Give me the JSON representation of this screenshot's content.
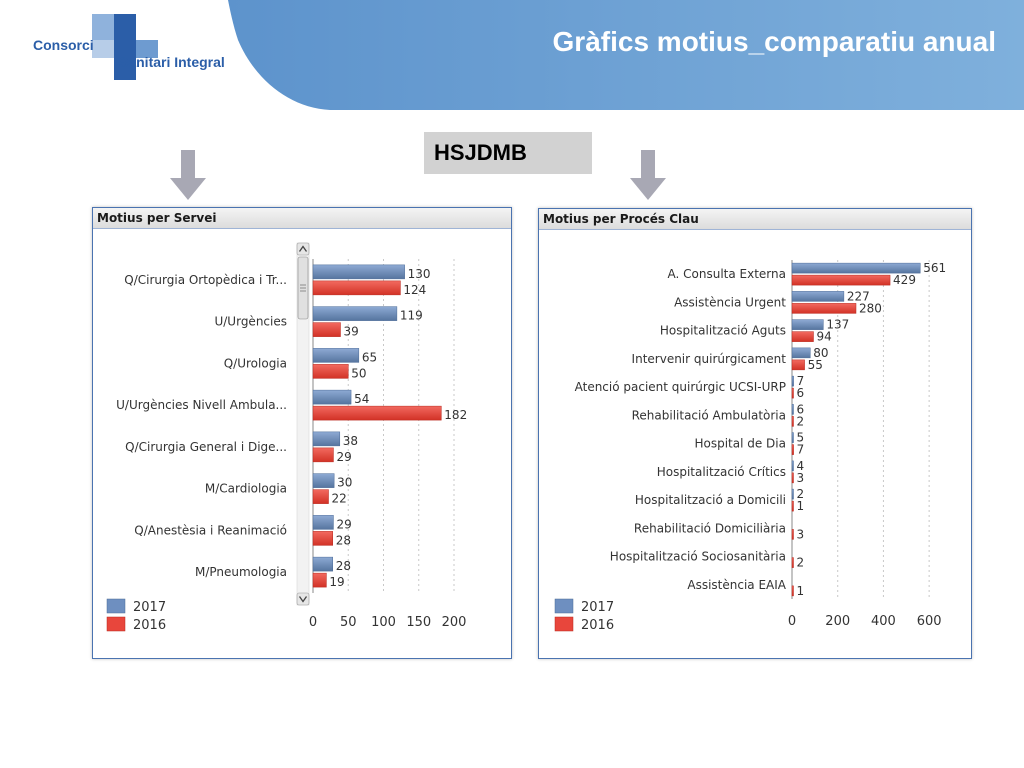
{
  "header": {
    "logo_line1": "Consorci",
    "logo_line2": "Sanitari Integral",
    "title": "Gràfics motius_comparatiu anual"
  },
  "hospital_label": "HSJDMB",
  "colors": {
    "series_2017": "#6e8fc0",
    "series_2016": "#e8463c",
    "brand_blue": "#2b5ea8",
    "arrow_gray": "#a8a8b4"
  },
  "panels": {
    "left": {
      "title": "Motius per Servei"
    },
    "right": {
      "title": "Motius per Procés Clau"
    }
  },
  "chart_data": [
    {
      "type": "bar",
      "orientation": "horizontal",
      "title": "Motius per Servei",
      "categories": [
        "Q/Cirurgia Ortopèdica i Tr...",
        "U/Urgències",
        "Q/Urologia",
        "U/Urgències Nivell Ambula...",
        "Q/Cirurgia General i Dige...",
        "M/Cardiologia",
        "Q/Anestèsia i Reanimació",
        "M/Pneumologia"
      ],
      "series": [
        {
          "name": "2017",
          "values": [
            130,
            119,
            65,
            54,
            38,
            30,
            29,
            28
          ]
        },
        {
          "name": "2016",
          "values": [
            124,
            39,
            50,
            182,
            29,
            22,
            28,
            19
          ]
        }
      ],
      "xlim": [
        0,
        200
      ],
      "xticks": [
        "0",
        "50",
        "100",
        "150",
        "200"
      ],
      "grid": true,
      "legend": "bottom-left"
    },
    {
      "type": "bar",
      "orientation": "horizontal",
      "title": "Motius per Procés Clau",
      "categories": [
        "A. Consulta Externa",
        "Assistència Urgent",
        "Hospitalització Aguts",
        "Intervenir quirúrgicament",
        "Atenció pacient quirúrgic UCSI-URP",
        "Rehabilitació Ambulatòria",
        "Hospital de Dia",
        "Hospitalització Crítics",
        "Hospitalització a Domicili",
        "Rehabilitació Domiciliària",
        "Hospitalització Sociosanitària",
        "Assistència EAIA"
      ],
      "series": [
        {
          "name": "2017",
          "values": [
            561,
            227,
            137,
            80,
            7,
            6,
            5,
            4,
            2,
            null,
            null,
            null
          ]
        },
        {
          "name": "2016",
          "values": [
            429,
            280,
            94,
            55,
            6,
            2,
            7,
            3,
            1,
            3,
            2,
            1
          ]
        }
      ],
      "xlim": [
        0,
        700
      ],
      "xticks": [
        "0",
        "200",
        "400",
        "600"
      ],
      "grid": true,
      "legend": "bottom-left"
    }
  ]
}
